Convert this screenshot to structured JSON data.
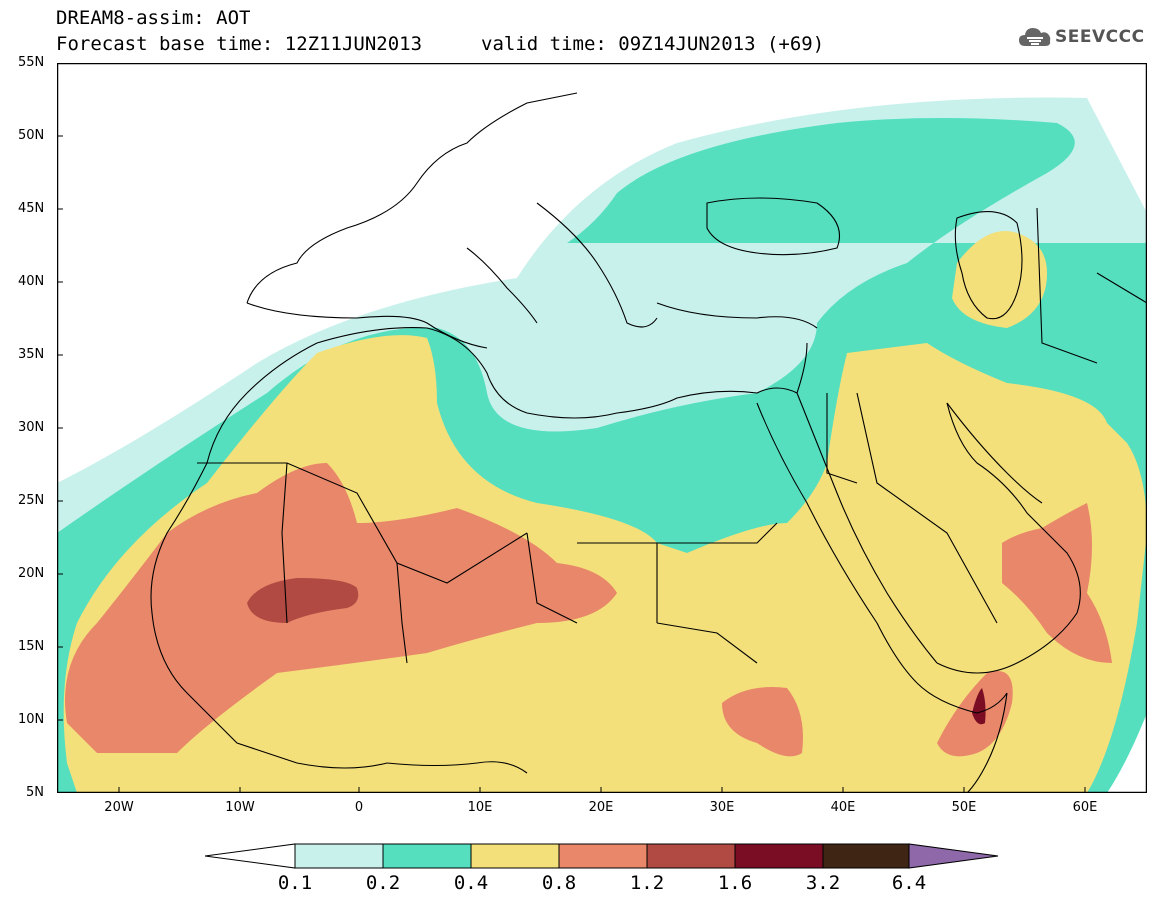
{
  "header": {
    "line1": "DREAM8-assim: AOT",
    "line2_base": "Forecast base time: 12Z11JUN2013",
    "line2_valid": "valid time: 09Z14JUN2013 (+69)"
  },
  "logo": {
    "text": "SEEVCCC",
    "icon": "cloud-logo-icon"
  },
  "map": {
    "lat_labels": [
      "55N",
      "50N",
      "45N",
      "40N",
      "35N",
      "30N",
      "25N",
      "20N",
      "15N",
      "10N",
      "5N"
    ],
    "lon_labels": [
      "20W",
      "10W",
      "0",
      "10E",
      "20E",
      "30E",
      "40E",
      "50E",
      "60E"
    ],
    "colors": {
      "c01": "#c8f1ec",
      "c02": "#55dfbf",
      "c04": "#f4e07a",
      "c08": "#e8876a",
      "c12": "#b14a42",
      "c16": "#7a0d24",
      "c32": "#3e2514",
      "c64": "#8e68a8"
    }
  },
  "colorbar": {
    "labels": [
      "0.1",
      "0.2",
      "0.4",
      "0.8",
      "1.2",
      "1.6",
      "3.2",
      "6.4"
    ]
  }
}
